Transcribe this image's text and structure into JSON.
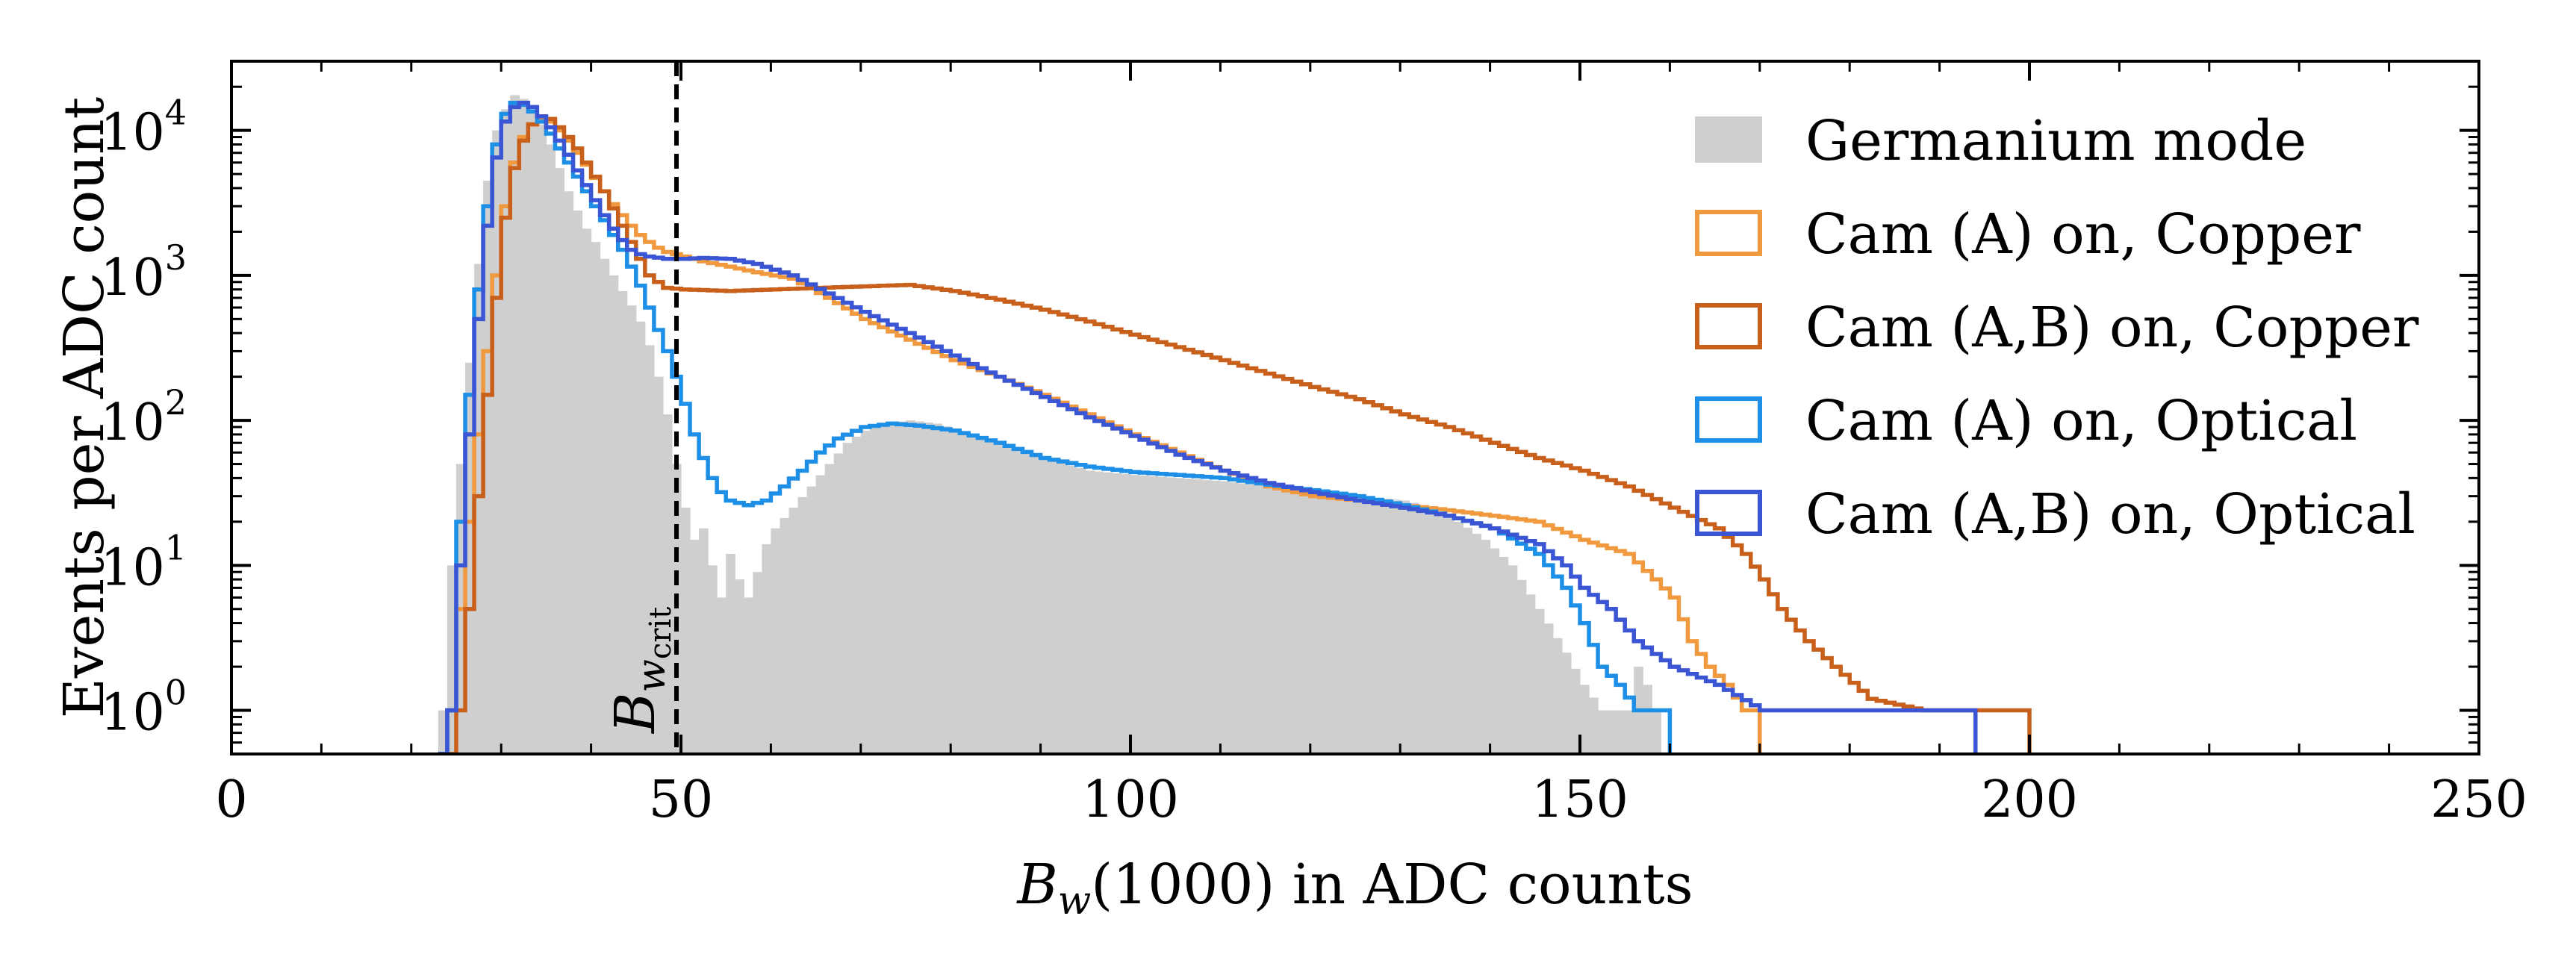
{
  "chart_data": {
    "type": "histogram-step",
    "x_axis": {
      "label_main": "B",
      "label_sub": "w",
      "label_rest": "(1000) in ADC counts",
      "range": [
        0,
        250
      ],
      "ticks": [
        0,
        50,
        100,
        150,
        200,
        250
      ],
      "tick_labels": [
        "0",
        "50",
        "100",
        "150",
        "200",
        "250"
      ]
    },
    "y_axis": {
      "label": "Events per ADC count",
      "scale": "log",
      "range": [
        0.5,
        30000
      ],
      "tick_exponents": [
        0,
        1,
        2,
        3,
        4
      ],
      "tick_base": "10"
    },
    "annotation": {
      "x": 49.5,
      "label_main": "B",
      "label_sub": "w",
      "label_subsub": "crit"
    },
    "legend": {
      "position": "top-right",
      "entries": [
        {
          "label": "Germanium mode",
          "style": "filled",
          "color": "#cfcfcf"
        },
        {
          "label": "Cam (A) on, Copper",
          "style": "step",
          "color": "#f0993f"
        },
        {
          "label": "Cam (A,B) on, Copper",
          "style": "step",
          "color": "#c8601c"
        },
        {
          "label": "Cam (A) on, Optical",
          "style": "step",
          "color": "#1e8fe6"
        },
        {
          "label": "Cam (A,B) on, Optical",
          "style": "step",
          "color": "#3a56d4"
        }
      ]
    },
    "bin_width": 1,
    "series": [
      {
        "name": "Germanium mode",
        "color": "#cfcfcf",
        "fill": true,
        "points": [
          [
            22,
            0
          ],
          [
            23,
            1
          ],
          [
            24,
            10
          ],
          [
            25,
            50
          ],
          [
            26,
            250
          ],
          [
            27,
            1200
          ],
          [
            28,
            4500
          ],
          [
            29,
            10000
          ],
          [
            30,
            14000
          ],
          [
            31,
            17500
          ],
          [
            32,
            16500
          ],
          [
            33,
            14000
          ],
          [
            34,
            11000
          ],
          [
            35,
            8000
          ],
          [
            36,
            5500
          ],
          [
            37,
            3800
          ],
          [
            38,
            2800
          ],
          [
            39,
            2100
          ],
          [
            40,
            1700
          ],
          [
            41,
            1300
          ],
          [
            42,
            1000
          ],
          [
            43,
            780
          ],
          [
            44,
            620
          ],
          [
            45,
            480
          ],
          [
            46,
            330
          ],
          [
            47,
            200
          ],
          [
            48,
            110
          ],
          [
            49,
            50
          ],
          [
            50,
            25
          ],
          [
            51,
            15
          ],
          [
            52,
            18
          ],
          [
            53,
            10
          ],
          [
            54,
            6
          ],
          [
            55,
            12
          ],
          [
            56,
            8
          ],
          [
            57,
            6
          ],
          [
            58,
            9
          ],
          [
            59,
            14
          ],
          [
            60,
            18
          ],
          [
            62,
            25
          ],
          [
            64,
            35
          ],
          [
            66,
            50
          ],
          [
            68,
            70
          ],
          [
            70,
            85
          ],
          [
            72,
            95
          ],
          [
            75,
            100
          ],
          [
            78,
            95
          ],
          [
            82,
            80
          ],
          [
            86,
            65
          ],
          [
            90,
            55
          ],
          [
            95,
            45
          ],
          [
            100,
            42
          ],
          [
            105,
            40
          ],
          [
            110,
            38
          ],
          [
            115,
            35
          ],
          [
            120,
            32
          ],
          [
            125,
            30
          ],
          [
            130,
            28
          ],
          [
            133,
            25
          ],
          [
            136,
            20
          ],
          [
            139,
            15
          ],
          [
            142,
            10
          ],
          [
            145,
            5
          ],
          [
            148,
            2.5
          ],
          [
            150,
            1.5
          ],
          [
            152,
            1
          ],
          [
            155,
            1
          ],
          [
            156,
            2
          ],
          [
            157,
            1.5
          ],
          [
            158,
            1
          ],
          [
            159,
            0
          ]
        ]
      },
      {
        "name": "Cam (A) on, Copper",
        "color": "#f0993f",
        "fill": false,
        "points": [
          [
            23,
            0
          ],
          [
            24,
            1
          ],
          [
            25,
            5
          ],
          [
            26,
            20
          ],
          [
            27,
            80
          ],
          [
            28,
            300
          ],
          [
            29,
            1000
          ],
          [
            30,
            3000
          ],
          [
            31,
            6000
          ],
          [
            32,
            9000
          ],
          [
            33,
            11000
          ],
          [
            34,
            12000
          ],
          [
            35,
            11500
          ],
          [
            36,
            10000
          ],
          [
            37,
            8500
          ],
          [
            38,
            7000
          ],
          [
            39,
            5800
          ],
          [
            40,
            4700
          ],
          [
            41,
            3800
          ],
          [
            42,
            3100
          ],
          [
            43,
            2600
          ],
          [
            44,
            2200
          ],
          [
            45,
            1900
          ],
          [
            46,
            1700
          ],
          [
            47,
            1550
          ],
          [
            48,
            1450
          ],
          [
            50,
            1350
          ],
          [
            52,
            1250
          ],
          [
            55,
            1150
          ],
          [
            58,
            1050
          ],
          [
            62,
            950
          ],
          [
            66,
            700
          ],
          [
            70,
            500
          ],
          [
            75,
            360
          ],
          [
            80,
            260
          ],
          [
            85,
            200
          ],
          [
            90,
            150
          ],
          [
            95,
            110
          ],
          [
            100,
            80
          ],
          [
            105,
            60
          ],
          [
            110,
            45
          ],
          [
            115,
            35
          ],
          [
            120,
            30
          ],
          [
            125,
            28
          ],
          [
            130,
            26
          ],
          [
            135,
            24
          ],
          [
            140,
            22
          ],
          [
            145,
            20
          ],
          [
            150,
            15
          ],
          [
            155,
            12
          ],
          [
            158,
            8
          ],
          [
            160,
            6
          ],
          [
            162,
            3
          ],
          [
            164,
            2
          ],
          [
            166,
            1.5
          ],
          [
            168,
            1
          ],
          [
            170,
            0
          ]
        ]
      },
      {
        "name": "Cam (A,B) on, Copper",
        "color": "#c8601c",
        "fill": false,
        "points": [
          [
            24,
            0
          ],
          [
            25,
            1
          ],
          [
            26,
            5
          ],
          [
            27,
            30
          ],
          [
            28,
            150
          ],
          [
            29,
            700
          ],
          [
            30,
            2500
          ],
          [
            31,
            5500
          ],
          [
            32,
            8500
          ],
          [
            33,
            11000
          ],
          [
            34,
            12500
          ],
          [
            35,
            12000
          ],
          [
            36,
            10500
          ],
          [
            37,
            9000
          ],
          [
            38,
            7500
          ],
          [
            39,
            6000
          ],
          [
            40,
            4800
          ],
          [
            41,
            3800
          ],
          [
            42,
            2900
          ],
          [
            43,
            2200
          ],
          [
            44,
            1700
          ],
          [
            45,
            1300
          ],
          [
            46,
            1000
          ],
          [
            47,
            900
          ],
          [
            48,
            820
          ],
          [
            50,
            800
          ],
          [
            55,
            780
          ],
          [
            60,
            800
          ],
          [
            65,
            820
          ],
          [
            70,
            840
          ],
          [
            75,
            860
          ],
          [
            80,
            780
          ],
          [
            85,
            680
          ],
          [
            90,
            580
          ],
          [
            95,
            480
          ],
          [
            100,
            390
          ],
          [
            105,
            320
          ],
          [
            110,
            260
          ],
          [
            115,
            210
          ],
          [
            120,
            170
          ],
          [
            125,
            140
          ],
          [
            130,
            110
          ],
          [
            135,
            90
          ],
          [
            140,
            70
          ],
          [
            145,
            55
          ],
          [
            150,
            45
          ],
          [
            155,
            35
          ],
          [
            160,
            25
          ],
          [
            165,
            18
          ],
          [
            168,
            12
          ],
          [
            170,
            8
          ],
          [
            172,
            5
          ],
          [
            175,
            3
          ],
          [
            178,
            2
          ],
          [
            182,
            1.2
          ],
          [
            188,
            1
          ],
          [
            194,
            1
          ],
          [
            198,
            1
          ],
          [
            200,
            0
          ]
        ]
      },
      {
        "name": "Cam (A) on, Optical",
        "color": "#1e8fe6",
        "fill": false,
        "points": [
          [
            23,
            0
          ],
          [
            24,
            1
          ],
          [
            25,
            20
          ],
          [
            26,
            150
          ],
          [
            27,
            800
          ],
          [
            28,
            3000
          ],
          [
            29,
            8000
          ],
          [
            30,
            13000
          ],
          [
            31,
            15500
          ],
          [
            32,
            15000
          ],
          [
            33,
            13500
          ],
          [
            34,
            11500
          ],
          [
            35,
            9500
          ],
          [
            36,
            7500
          ],
          [
            37,
            6000
          ],
          [
            38,
            4800
          ],
          [
            39,
            3800
          ],
          [
            40,
            3000
          ],
          [
            41,
            2400
          ],
          [
            42,
            1900
          ],
          [
            43,
            1500
          ],
          [
            44,
            1150
          ],
          [
            45,
            850
          ],
          [
            46,
            600
          ],
          [
            47,
            420
          ],
          [
            48,
            300
          ],
          [
            49,
            200
          ],
          [
            50,
            130
          ],
          [
            51,
            80
          ],
          [
            52,
            55
          ],
          [
            53,
            40
          ],
          [
            54,
            32
          ],
          [
            55,
            28
          ],
          [
            57,
            26
          ],
          [
            59,
            28
          ],
          [
            61,
            35
          ],
          [
            63,
            45
          ],
          [
            65,
            60
          ],
          [
            67,
            75
          ],
          [
            70,
            90
          ],
          [
            73,
            95
          ],
          [
            76,
            92
          ],
          [
            80,
            85
          ],
          [
            85,
            70
          ],
          [
            90,
            55
          ],
          [
            95,
            48
          ],
          [
            100,
            44
          ],
          [
            105,
            42
          ],
          [
            110,
            40
          ],
          [
            115,
            36
          ],
          [
            120,
            33
          ],
          [
            125,
            30
          ],
          [
            130,
            26
          ],
          [
            135,
            22
          ],
          [
            140,
            18
          ],
          [
            145,
            12
          ],
          [
            148,
            7
          ],
          [
            150,
            4
          ],
          [
            152,
            2
          ],
          [
            154,
            1.5
          ],
          [
            156,
            1
          ],
          [
            158,
            1
          ],
          [
            160,
            0
          ]
        ]
      },
      {
        "name": "Cam (A,B) on, Optical",
        "color": "#3a56d4",
        "fill": false,
        "points": [
          [
            23,
            0
          ],
          [
            24,
            1
          ],
          [
            25,
            10
          ],
          [
            26,
            80
          ],
          [
            27,
            500
          ],
          [
            28,
            2200
          ],
          [
            29,
            6500
          ],
          [
            30,
            11500
          ],
          [
            31,
            14500
          ],
          [
            32,
            15500
          ],
          [
            33,
            14500
          ],
          [
            34,
            12500
          ],
          [
            35,
            10500
          ],
          [
            36,
            8500
          ],
          [
            37,
            6800
          ],
          [
            38,
            5300
          ],
          [
            39,
            4200
          ],
          [
            40,
            3300
          ],
          [
            41,
            2600
          ],
          [
            42,
            2100
          ],
          [
            43,
            1750
          ],
          [
            44,
            1500
          ],
          [
            45,
            1400
          ],
          [
            46,
            1350
          ],
          [
            48,
            1300
          ],
          [
            50,
            1300
          ],
          [
            52,
            1320
          ],
          [
            55,
            1300
          ],
          [
            58,
            1200
          ],
          [
            62,
            1000
          ],
          [
            66,
            750
          ],
          [
            70,
            560
          ],
          [
            75,
            400
          ],
          [
            80,
            280
          ],
          [
            85,
            200
          ],
          [
            90,
            145
          ],
          [
            95,
            105
          ],
          [
            100,
            78
          ],
          [
            105,
            58
          ],
          [
            110,
            45
          ],
          [
            115,
            37
          ],
          [
            120,
            32
          ],
          [
            125,
            28
          ],
          [
            130,
            25
          ],
          [
            135,
            22
          ],
          [
            140,
            18
          ],
          [
            145,
            14
          ],
          [
            148,
            10
          ],
          [
            150,
            7
          ],
          [
            153,
            5
          ],
          [
            156,
            3
          ],
          [
            160,
            2
          ],
          [
            165,
            1.5
          ],
          [
            170,
            1
          ],
          [
            178,
            1
          ],
          [
            185,
            1
          ],
          [
            192,
            1
          ],
          [
            194,
            0
          ]
        ]
      }
    ]
  }
}
